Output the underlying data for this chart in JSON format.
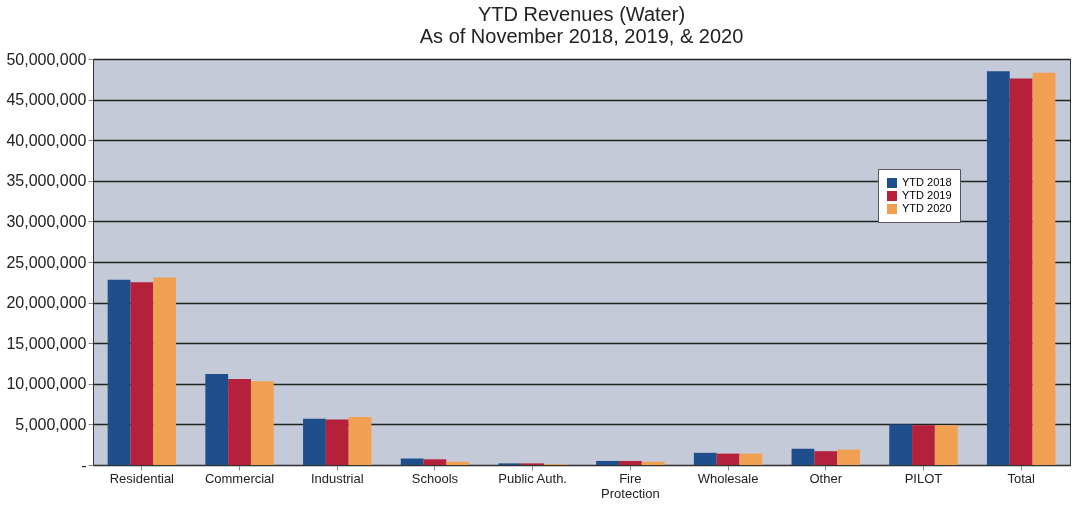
{
  "chart_data": {
    "type": "bar",
    "title": "YTD Revenues (Water)\nAs of November 2018, 2019, & 2020",
    "categories": [
      "Residential",
      "Commercial",
      "Industrial",
      "Schools",
      "Public Auth.",
      "Fire Protection",
      "Wholesale",
      "Other",
      "PILOT",
      "Total"
    ],
    "series": [
      {
        "name": "YTD 2018",
        "color": "#1f4e8c",
        "values": [
          22800000,
          11200000,
          5700000,
          800000,
          200000,
          500000,
          1500000,
          2000000,
          5000000,
          48500000
        ]
      },
      {
        "name": "YTD 2019",
        "color": "#b5203a",
        "values": [
          22500000,
          10600000,
          5600000,
          700000,
          200000,
          500000,
          1400000,
          1700000,
          4900000,
          47600000
        ]
      },
      {
        "name": "YTD 2020",
        "color": "#f0a050",
        "values": [
          23100000,
          10300000,
          5900000,
          400000,
          100000,
          400000,
          1400000,
          1900000,
          4900000,
          48300000
        ]
      }
    ],
    "ylim": [
      0,
      50000000
    ],
    "yticks": [
      {
        "value": 0,
        "label": "-"
      },
      {
        "value": 5000000,
        "label": "5,000,000"
      },
      {
        "value": 10000000,
        "label": "10,000,000"
      },
      {
        "value": 15000000,
        "label": "15,000,000"
      },
      {
        "value": 20000000,
        "label": "20,000,000"
      },
      {
        "value": 25000000,
        "label": "25,000,000"
      },
      {
        "value": 30000000,
        "label": "30,000,000"
      },
      {
        "value": 35000000,
        "label": "35,000,000"
      },
      {
        "value": 40000000,
        "label": "40,000,000"
      },
      {
        "value": 45000000,
        "label": "45,000,000"
      },
      {
        "value": 50000000,
        "label": "50,000,000"
      }
    ],
    "grid": "y",
    "legend": "top right"
  }
}
